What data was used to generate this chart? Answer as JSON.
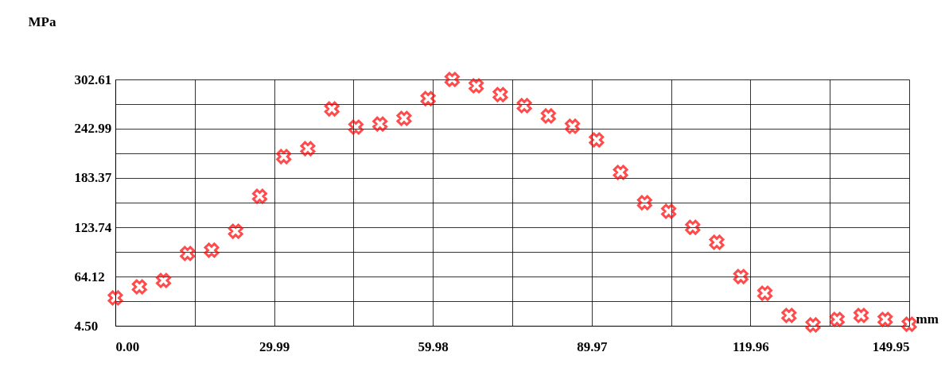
{
  "chart_data": {
    "type": "scatter",
    "xlabel": "mm",
    "ylabel": "MPa",
    "x": [
      0,
      4.544,
      9.088,
      13.632,
      18.176,
      22.72,
      27.264,
      31.808,
      36.352,
      40.896,
      45.44,
      49.984,
      54.528,
      59.072,
      63.616,
      68.16,
      72.704,
      77.248,
      81.792,
      86.336,
      90.88,
      95.424,
      99.968,
      104.512,
      109.056,
      113.6,
      118.144,
      122.688,
      127.232,
      131.776,
      136.32,
      140.864,
      145.408,
      149.95
    ],
    "series": [
      {
        "color": "#ff0000",
        "values": [
          38.2,
          51.6,
          59.3,
          92.0,
          95.9,
          118.9,
          161.2,
          209.3,
          218.9,
          267.0,
          244.9,
          248.7,
          255.5,
          279.5,
          302.6,
          294.9,
          284.3,
          270.9,
          258.4,
          245.9,
          229.5,
          190.1,
          153.5,
          143.0,
          123.7,
          105.5,
          64.1,
          43.9,
          17.0,
          5.5,
          12.2,
          17.0,
          12.2,
          6.4
        ]
      }
    ],
    "marker": "cross",
    "grid": true,
    "legend": false,
    "xlim": [
      0,
      149.95
    ],
    "ylim": [
      4.5,
      302.61
    ],
    "xticks": [
      {
        "value": 0,
        "label": "0.00"
      },
      {
        "value": 14.995,
        "label": null
      },
      {
        "value": 29.99,
        "label": "29.99"
      },
      {
        "value": 44.985,
        "label": null
      },
      {
        "value": 59.98,
        "label": "59.98"
      },
      {
        "value": 74.975,
        "label": null
      },
      {
        "value": 89.97,
        "label": "89.97"
      },
      {
        "value": 104.965,
        "label": null
      },
      {
        "value": 119.96,
        "label": "119.96"
      },
      {
        "value": 134.955,
        "label": null
      },
      {
        "value": 149.95,
        "label": "149.95"
      }
    ],
    "yticks": [
      {
        "value": 4.5,
        "label": "4.50"
      },
      {
        "value": 34.31,
        "label": null
      },
      {
        "value": 64.12,
        "label": "64.12"
      },
      {
        "value": 93.93,
        "label": null
      },
      {
        "value": 123.74,
        "label": "123.74"
      },
      {
        "value": 153.555,
        "label": null
      },
      {
        "value": 183.37,
        "label": "183.37"
      },
      {
        "value": 213.18,
        "label": null
      },
      {
        "value": 242.99,
        "label": "242.99"
      },
      {
        "value": 272.8,
        "label": null
      },
      {
        "value": 302.61,
        "label": "302.61"
      }
    ]
  }
}
